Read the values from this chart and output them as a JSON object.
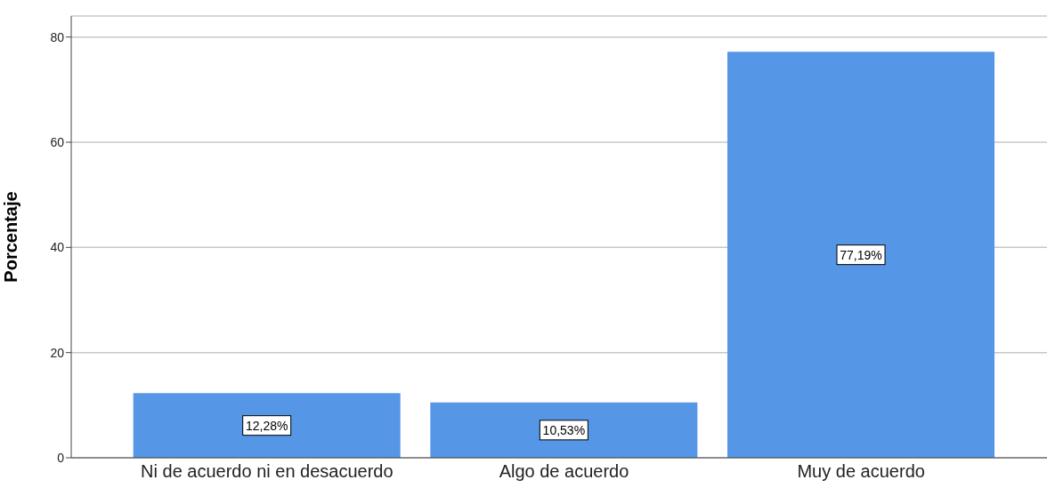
{
  "chart_data": {
    "type": "bar",
    "ylabel": "Porcentaje",
    "categories": [
      "Ni de acuerdo ni en desacuerdo",
      "Algo de acuerdo",
      "Muy de acuerdo"
    ],
    "values": [
      12.28,
      10.53,
      77.19
    ],
    "value_labels": [
      "12,28%",
      "10,53%",
      "77,19%"
    ],
    "color": "#5596e6",
    "ylim": [
      0,
      84
    ],
    "yticks": [
      0,
      20,
      40,
      60,
      80
    ],
    "grid": "y"
  }
}
